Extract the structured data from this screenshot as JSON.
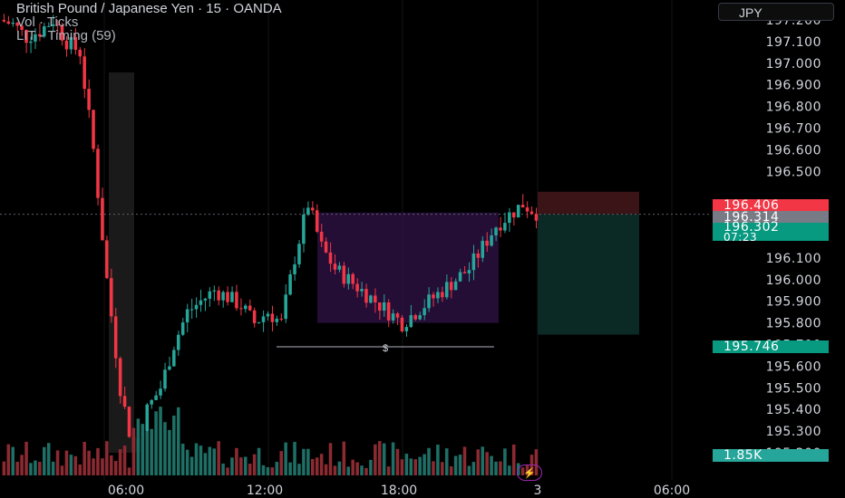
{
  "legend": {
    "title": "British Pound / Japanese Yen · 15 · OANDA",
    "vol": "Vol · Ticks",
    "indicator": "LIT - Timing (59)"
  },
  "currency_button": "JPY",
  "price_axis": {
    "ticks": [
      "197.200",
      "197.100",
      "197.000",
      "196.900",
      "196.800",
      "196.700",
      "196.600",
      "196.500",
      "196.200",
      "196.100",
      "196.000",
      "195.900",
      "195.800",
      "195.700",
      "195.600",
      "195.500",
      "195.400",
      "195.300",
      "195.200"
    ]
  },
  "price_tags": {
    "stop": "196.406",
    "bid": "196.314",
    "last": "196.302",
    "countdown": "07:23",
    "target": "195.746",
    "volume": "1.85K"
  },
  "time_axis": {
    "labels": [
      "06:00",
      "12:00",
      "18:00",
      "3",
      "06:00"
    ]
  },
  "annotations": {
    "liquidity_symbol": "$"
  },
  "colors": {
    "up": "#26a69a",
    "down": "#f23645",
    "range_box": "#2a1140",
    "target_zone": "#0b2a26",
    "stop_zone": "#3a1416",
    "grid": "#151515"
  },
  "chart_data": {
    "type": "candlestick",
    "symbol": "GBPJPY",
    "interval": "15",
    "ylim": [
      195.15,
      197.25
    ],
    "ohlc_close_path_approx": [
      197.2,
      197.18,
      197.12,
      197.15,
      197.2,
      197.1,
      197.05,
      196.6,
      196.0,
      195.5,
      195.2,
      195.4,
      195.5,
      195.7,
      195.85,
      195.9,
      195.95,
      195.92,
      195.88,
      195.8,
      195.85,
      195.8,
      196.1,
      196.35,
      196.15,
      196.05,
      196.0,
      195.95,
      195.9,
      195.85,
      195.8,
      195.85,
      195.9,
      195.95,
      196.0,
      196.05,
      196.15,
      196.25,
      196.3,
      196.35,
      196.31
    ],
    "zones": {
      "stop": 196.406,
      "entry": 196.302,
      "target": 195.746
    }
  }
}
